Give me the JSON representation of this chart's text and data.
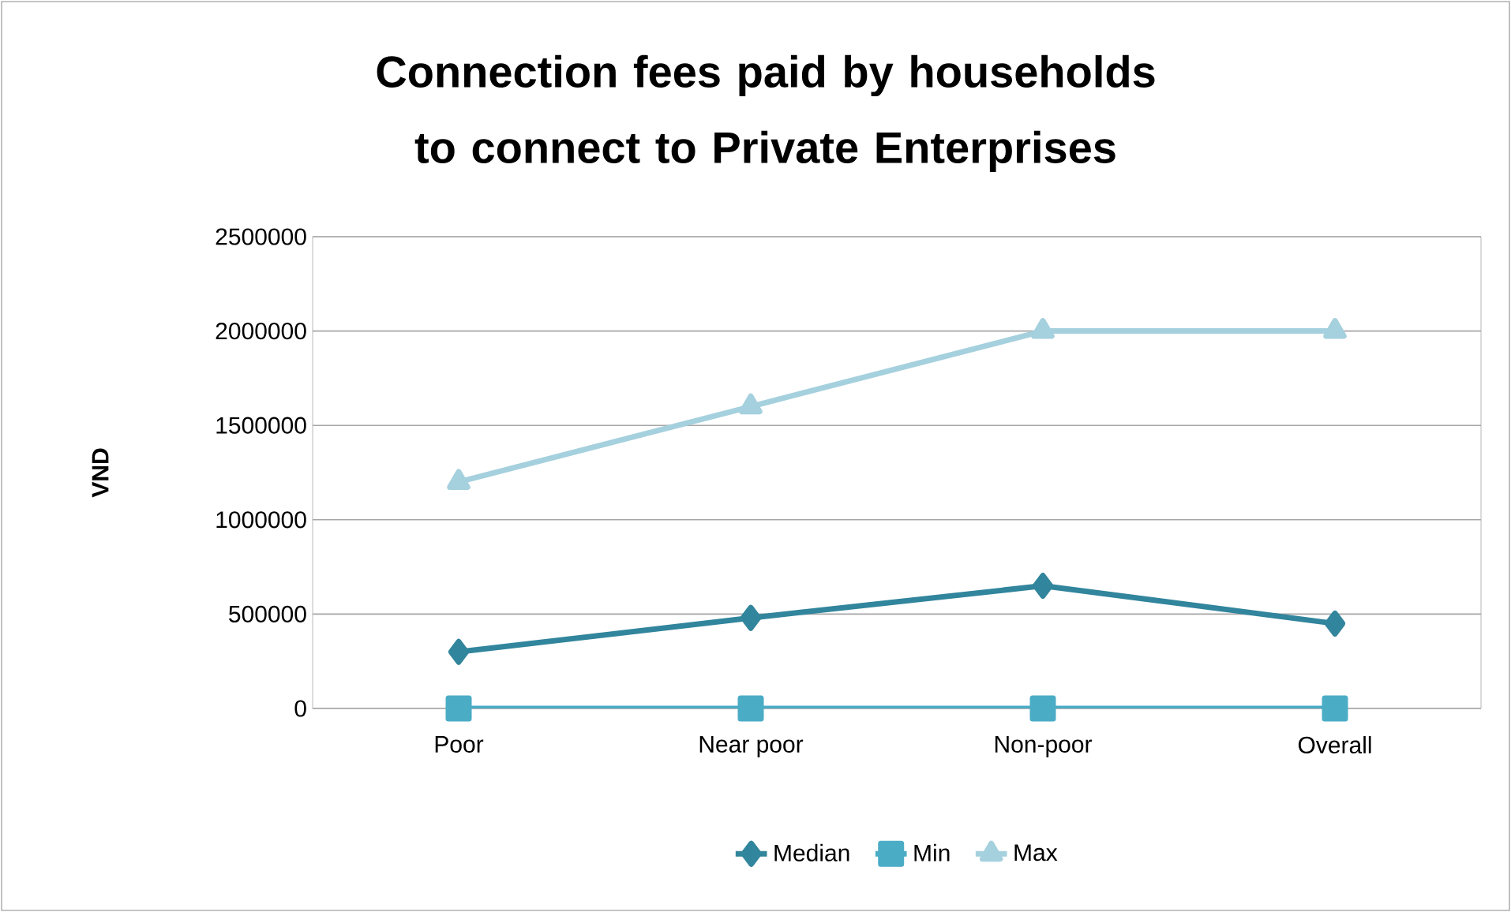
{
  "chart_data": {
    "type": "line",
    "title": "Connection fees paid by households to connect to Private Enterprises",
    "ylabel": "VND",
    "categories": [
      "Poor",
      "Near poor",
      "Non-poor",
      "Overall"
    ],
    "series": [
      {
        "name": "Median",
        "color": "#31859c",
        "marker": "diamond",
        "values": [
          300000,
          480000,
          650000,
          450000
        ]
      },
      {
        "name": "Min",
        "color": "#4bacc6",
        "marker": "square",
        "values": [
          0,
          0,
          0,
          0
        ]
      },
      {
        "name": "Max",
        "color": "#a5d0de",
        "marker": "triangle",
        "values": [
          1200000,
          1600000,
          2000000,
          2000000
        ]
      }
    ],
    "ylim": [
      0,
      2500000
    ],
    "yticks": [
      0,
      500000,
      1000000,
      1500000,
      2000000,
      2500000
    ],
    "grid": "y",
    "legend": "bottom"
  }
}
